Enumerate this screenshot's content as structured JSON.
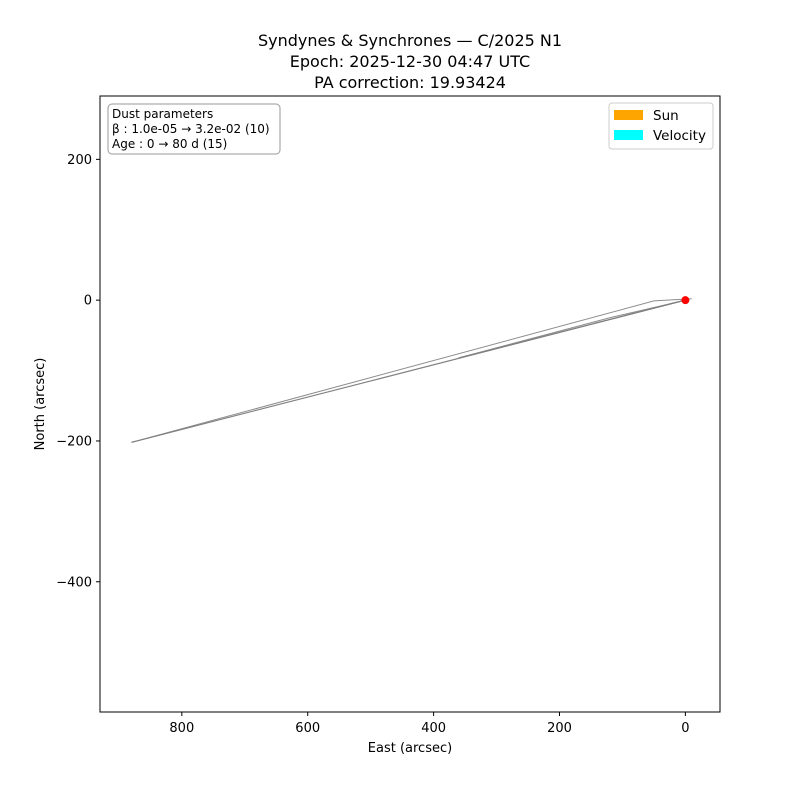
{
  "chart_data": {
    "type": "line",
    "title_lines": [
      "Syndynes & Synchrones — C/2025 N1",
      "Epoch: 2025-12-30 04:47 UTC",
      "PA correction: 19.93424"
    ],
    "xlabel": "East (arcsec)",
    "ylabel": "North (arcsec)",
    "x_inverted": true,
    "xlim": [
      930,
      -55
    ],
    "ylim": [
      -585,
      290
    ],
    "xticks": [
      800,
      600,
      400,
      200,
      0
    ],
    "yticks": [
      200,
      0,
      -200,
      -400
    ],
    "xtick_labels": [
      "800",
      "600",
      "400",
      "200",
      "0"
    ],
    "ytick_labels": [
      "200",
      "0",
      "−200",
      "−400"
    ],
    "grid": false,
    "info_box": {
      "position": "top-left",
      "lines": [
        "Dust parameters",
        "β : 1.0e-05 → 3.2e-02 (10)",
        "Age : 0 → 80 d (15)"
      ]
    },
    "legend": {
      "position": "top-right",
      "entries": [
        {
          "label": "Sun",
          "color": "#ffa500"
        },
        {
          "label": "Velocity",
          "color": "#00ffff"
        }
      ]
    },
    "curve_color": "#808080",
    "nucleus": {
      "x": 0,
      "y": 0,
      "color": "#ff0000"
    },
    "series": [
      {
        "values": [
          [
            0,
            0
          ],
          [
            880,
            -202
          ]
        ]
      },
      {
        "values": [
          [
            0,
            0
          ],
          [
            880,
            -202
          ]
        ]
      },
      {
        "values": [
          [
            0,
            0
          ],
          [
            360,
            -82
          ]
        ]
      },
      {
        "values": [
          [
            0,
            0
          ],
          [
            145,
            -33
          ]
        ]
      },
      {
        "values": [
          [
            0,
            0
          ],
          [
            60,
            -13
          ]
        ]
      },
      {
        "values": [
          [
            0,
            0
          ],
          [
            25,
            -5
          ]
        ]
      },
      {
        "values": [
          [
            -10,
            2
          ],
          [
            50,
            -1
          ],
          [
            880,
            -202
          ]
        ]
      },
      {
        "values": [
          [
            -5,
            1
          ],
          [
            120,
            -25
          ],
          [
            360,
            -82
          ]
        ]
      }
    ]
  }
}
